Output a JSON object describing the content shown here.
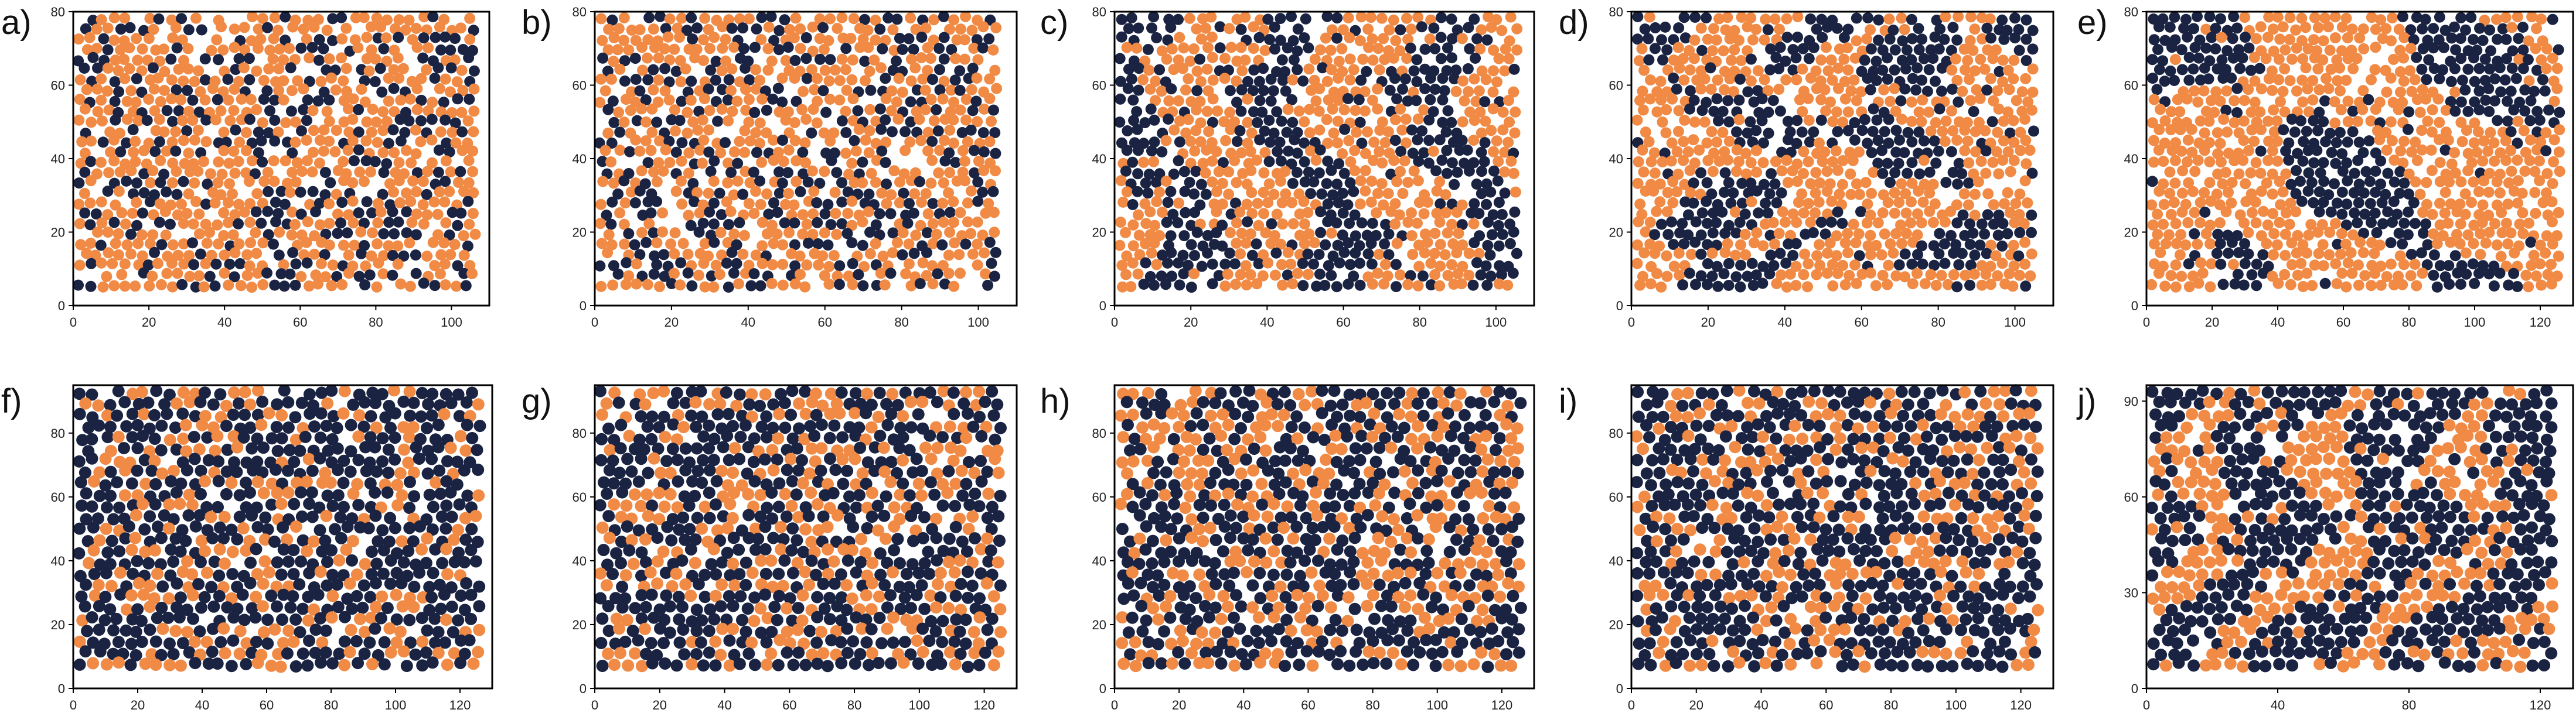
{
  "colors": {
    "species_a": "#f08a45",
    "species_b": "#1b2342",
    "frame": "#000000"
  },
  "panels": [
    {
      "label": "a)",
      "xticks": [
        "0",
        "20",
        "40",
        "60",
        "80",
        "100"
      ],
      "yticks": [
        "0",
        "20",
        "40",
        "60",
        "80"
      ]
    },
    {
      "label": "b)",
      "xticks": [
        "0",
        "20",
        "40",
        "60",
        "80",
        "100"
      ],
      "yticks": [
        "0",
        "20",
        "40",
        "60",
        "80"
      ]
    },
    {
      "label": "c)",
      "xticks": [
        "0",
        "20",
        "40",
        "60",
        "80",
        "100"
      ],
      "yticks": [
        "0",
        "20",
        "40",
        "60",
        "80"
      ]
    },
    {
      "label": "d)",
      "xticks": [
        "0",
        "20",
        "40",
        "60",
        "80",
        "100"
      ],
      "yticks": [
        "0",
        "20",
        "40",
        "60",
        "80"
      ]
    },
    {
      "label": "e)",
      "xticks": [
        "0",
        "20",
        "40",
        "60",
        "80",
        "100",
        "120"
      ],
      "yticks": [
        "0",
        "20",
        "40",
        "60",
        "80"
      ]
    },
    {
      "label": "f)",
      "xticks": [
        "0",
        "20",
        "40",
        "60",
        "80",
        "100",
        "120"
      ],
      "yticks": [
        "0",
        "20",
        "40",
        "60",
        "80"
      ]
    },
    {
      "label": "g)",
      "xticks": [
        "0",
        "20",
        "40",
        "60",
        "80",
        "100",
        "120"
      ],
      "yticks": [
        "0",
        "20",
        "40",
        "60",
        "80"
      ]
    },
    {
      "label": "h)",
      "xticks": [
        "0",
        "20",
        "40",
        "60",
        "80",
        "100",
        "120"
      ],
      "yticks": [
        "0",
        "20",
        "40",
        "60",
        "80"
      ]
    },
    {
      "label": "i)",
      "xticks": [
        "0",
        "20",
        "40",
        "60",
        "80",
        "100",
        "120"
      ],
      "yticks": [
        "0",
        "20",
        "40",
        "60",
        "80"
      ]
    },
    {
      "label": "j)",
      "xticks": [
        "0",
        "40",
        "80",
        "120"
      ],
      "yticks": [
        "0",
        "30",
        "60",
        "90"
      ]
    }
  ],
  "chart_data": [
    {
      "type": "scatter",
      "xlim": [
        0,
        110
      ],
      "ylim": [
        0,
        80
      ],
      "xticks": [
        0,
        20,
        40,
        60,
        80,
        100
      ],
      "yticks": [
        0,
        20,
        40,
        60,
        80
      ],
      "series": [
        {
          "color": "#f08a45",
          "approx_fraction": 0.65
        },
        {
          "color": "#1b2342",
          "approx_fraction": 0.35
        }
      ],
      "pattern": "mixed"
    },
    {
      "type": "scatter",
      "xlim": [
        0,
        110
      ],
      "ylim": [
        0,
        80
      ],
      "xticks": [
        0,
        20,
        40,
        60,
        80,
        100
      ],
      "yticks": [
        0,
        20,
        40,
        60,
        80
      ],
      "series": [
        {
          "color": "#f08a45",
          "approx_fraction": 0.62
        },
        {
          "color": "#1b2342",
          "approx_fraction": 0.38
        }
      ],
      "pattern": "mixed"
    },
    {
      "type": "scatter",
      "xlim": [
        0,
        110
      ],
      "ylim": [
        0,
        80
      ],
      "xticks": [
        0,
        20,
        40,
        60,
        80,
        100
      ],
      "yticks": [
        0,
        20,
        40,
        60,
        80
      ],
      "series": [
        {
          "color": "#f08a45",
          "approx_fraction": 0.55
        },
        {
          "color": "#1b2342",
          "approx_fraction": 0.45
        }
      ],
      "pattern": "chains"
    },
    {
      "type": "scatter",
      "xlim": [
        0,
        110
      ],
      "ylim": [
        0,
        80
      ],
      "xticks": [
        0,
        20,
        40,
        60,
        80,
        100
      ],
      "yticks": [
        0,
        20,
        40,
        60,
        80
      ],
      "series": [
        {
          "color": "#f08a45",
          "approx_fraction": 0.55
        },
        {
          "color": "#1b2342",
          "approx_fraction": 0.45
        }
      ],
      "pattern": "labyrinth"
    },
    {
      "type": "scatter",
      "xlim": [
        0,
        130
      ],
      "ylim": [
        0,
        80
      ],
      "xticks": [
        0,
        20,
        40,
        60,
        80,
        100,
        120
      ],
      "yticks": [
        0,
        20,
        40,
        60,
        80
      ],
      "series": [
        {
          "color": "#f08a45",
          "approx_fraction": 0.6
        },
        {
          "color": "#1b2342",
          "approx_fraction": 0.4
        }
      ],
      "pattern": "domains"
    },
    {
      "type": "scatter",
      "xlim": [
        0,
        130
      ],
      "ylim": [
        0,
        95
      ],
      "xticks": [
        0,
        20,
        40,
        60,
        80,
        100,
        120
      ],
      "yticks": [
        0,
        20,
        40,
        60,
        80
      ],
      "series": [
        {
          "color": "#f08a45",
          "approx_fraction": 0.35
        },
        {
          "color": "#1b2342",
          "approx_fraction": 0.65
        }
      ],
      "pattern": "mixed-dense"
    },
    {
      "type": "scatter",
      "xlim": [
        0,
        130
      ],
      "ylim": [
        0,
        95
      ],
      "xticks": [
        0,
        20,
        40,
        60,
        80,
        100,
        120
      ],
      "yticks": [
        0,
        20,
        40,
        60,
        80
      ],
      "series": [
        {
          "color": "#f08a45",
          "approx_fraction": 0.4
        },
        {
          "color": "#1b2342",
          "approx_fraction": 0.6
        }
      ],
      "pattern": "mixed-dense"
    },
    {
      "type": "scatter",
      "xlim": [
        0,
        130
      ],
      "ylim": [
        0,
        95
      ],
      "xticks": [
        0,
        20,
        40,
        60,
        80,
        100,
        120
      ],
      "yticks": [
        0,
        20,
        40,
        60,
        80
      ],
      "series": [
        {
          "color": "#f08a45",
          "approx_fraction": 0.4
        },
        {
          "color": "#1b2342",
          "approx_fraction": 0.6
        }
      ],
      "pattern": "mixed-dense"
    },
    {
      "type": "scatter",
      "xlim": [
        0,
        130
      ],
      "ylim": [
        0,
        95
      ],
      "xticks": [
        0,
        20,
        40,
        60,
        80,
        100,
        120
      ],
      "yticks": [
        0,
        20,
        40,
        60,
        80
      ],
      "series": [
        {
          "color": "#f08a45",
          "approx_fraction": 0.35
        },
        {
          "color": "#1b2342",
          "approx_fraction": 0.65
        }
      ],
      "pattern": "mixed-dense"
    },
    {
      "type": "scatter",
      "xlim": [
        0,
        130
      ],
      "ylim": [
        0,
        95
      ],
      "xticks": [
        0,
        40,
        80,
        120
      ],
      "yticks": [
        0,
        30,
        60,
        90
      ],
      "series": [
        {
          "color": "#f08a45",
          "approx_fraction": 0.4
        },
        {
          "color": "#1b2342",
          "approx_fraction": 0.6
        }
      ],
      "pattern": "stripes"
    }
  ]
}
